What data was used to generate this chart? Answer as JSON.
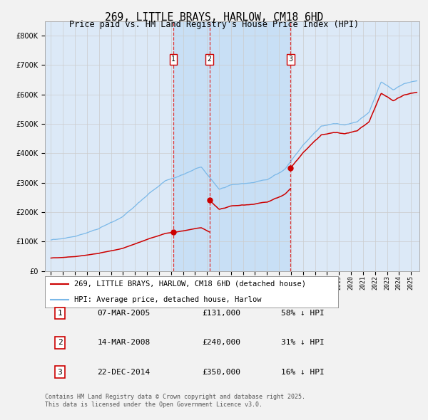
{
  "title": "269, LITTLE BRAYS, HARLOW, CM18 6HD",
  "subtitle": "Price paid vs. HM Land Registry's House Price Index (HPI)",
  "hpi_label": "HPI: Average price, detached house, Harlow",
  "price_label": "269, LITTLE BRAYS, HARLOW, CM18 6HD (detached house)",
  "legend_note": "Contains HM Land Registry data © Crown copyright and database right 2025.\nThis data is licensed under the Open Government Licence v3.0.",
  "transactions": [
    {
      "num": 1,
      "date": "07-MAR-2005",
      "price": 131000,
      "pct": "58%",
      "dir": "↓"
    },
    {
      "num": 2,
      "date": "14-MAR-2008",
      "price": 240000,
      "pct": "31%",
      "dir": "↓"
    },
    {
      "num": 3,
      "date": "22-DEC-2014",
      "price": 350000,
      "pct": "16%",
      "dir": "↓"
    }
  ],
  "transaction_dates_decimal": [
    2005.19,
    2008.2,
    2014.97
  ],
  "ylim": [
    0,
    850000
  ],
  "ylim_display_max": 800000,
  "xlim_start": 1994.5,
  "xlim_end": 2025.7,
  "bg_color": "#dce9f7",
  "grid_color": "#cccccc",
  "hpi_color": "#7ab8e8",
  "price_color": "#cc0000",
  "vline_color": "#dd3333",
  "title_fontsize": 10.5,
  "subtitle_fontsize": 8.5,
  "axis_fontsize": 7,
  "legend_fontsize": 7.5,
  "table_fontsize": 8
}
